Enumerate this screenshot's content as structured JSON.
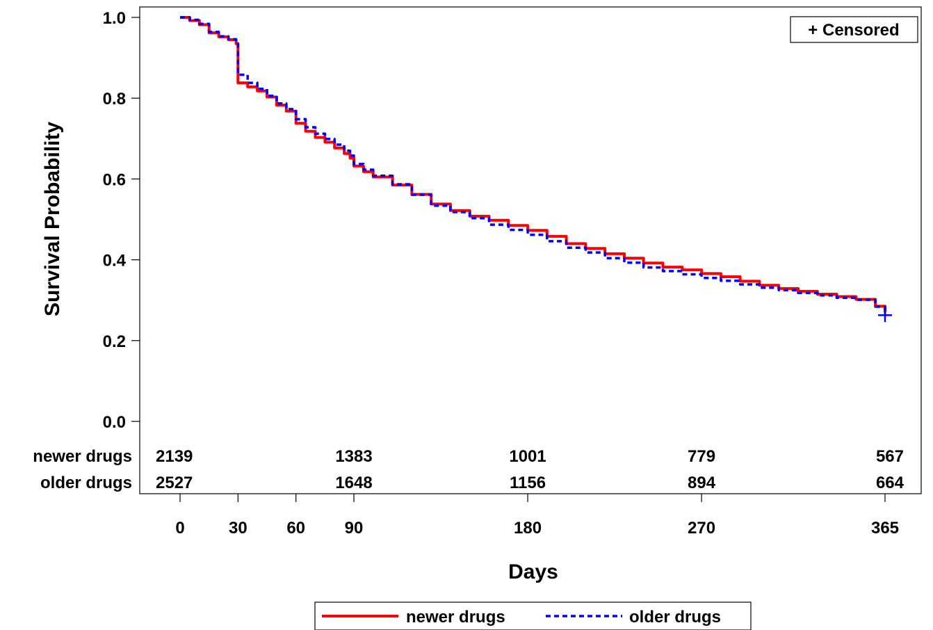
{
  "chart_data": {
    "type": "line",
    "title": "",
    "xlabel": "Days",
    "ylabel": "Survival Probability",
    "xlim": [
      0,
      365
    ],
    "ylim": [
      0,
      1
    ],
    "x_ticks": [
      0,
      30,
      60,
      90,
      180,
      270,
      365
    ],
    "y_ticks": [
      "0.0",
      "0.2",
      "0.4",
      "0.6",
      "0.8",
      "1.0"
    ],
    "grid": false,
    "censored_label": "+ Censored",
    "legend_position": "bottom",
    "series": [
      {
        "name": "newer drugs",
        "color": "#ff0000",
        "line_style": "solid",
        "x": [
          0,
          5,
          10,
          15,
          20,
          25,
          29,
          30,
          35,
          40,
          45,
          50,
          55,
          60,
          65,
          70,
          75,
          80,
          85,
          88,
          90,
          95,
          100,
          110,
          120,
          130,
          140,
          150,
          160,
          170,
          180,
          190,
          200,
          210,
          220,
          230,
          240,
          250,
          260,
          270,
          280,
          290,
          300,
          310,
          320,
          330,
          340,
          350,
          360,
          365
        ],
        "y": [
          1.0,
          0.992,
          0.982,
          0.962,
          0.952,
          0.945,
          0.935,
          0.838,
          0.828,
          0.818,
          0.803,
          0.783,
          0.768,
          0.738,
          0.718,
          0.703,
          0.691,
          0.677,
          0.663,
          0.652,
          0.632,
          0.618,
          0.605,
          0.585,
          0.562,
          0.538,
          0.522,
          0.508,
          0.498,
          0.485,
          0.473,
          0.458,
          0.44,
          0.428,
          0.415,
          0.404,
          0.392,
          0.382,
          0.375,
          0.366,
          0.358,
          0.347,
          0.337,
          0.329,
          0.322,
          0.315,
          0.309,
          0.302,
          0.285,
          0.269
        ]
      },
      {
        "name": "older drugs",
        "color": "#0000ff",
        "line_style": "dashed",
        "x": [
          0,
          5,
          10,
          15,
          20,
          25,
          29,
          30,
          35,
          40,
          45,
          50,
          55,
          60,
          65,
          70,
          75,
          80,
          85,
          88,
          90,
          95,
          100,
          110,
          120,
          130,
          140,
          150,
          160,
          170,
          180,
          190,
          200,
          210,
          220,
          230,
          240,
          250,
          260,
          270,
          280,
          290,
          300,
          310,
          320,
          330,
          340,
          350,
          360,
          365
        ],
        "y": [
          1.0,
          0.994,
          0.984,
          0.964,
          0.953,
          0.946,
          0.935,
          0.858,
          0.838,
          0.823,
          0.806,
          0.787,
          0.773,
          0.748,
          0.728,
          0.712,
          0.699,
          0.685,
          0.67,
          0.658,
          0.637,
          0.623,
          0.608,
          0.587,
          0.561,
          0.534,
          0.518,
          0.503,
          0.487,
          0.474,
          0.462,
          0.446,
          0.43,
          0.418,
          0.404,
          0.393,
          0.381,
          0.372,
          0.364,
          0.355,
          0.348,
          0.339,
          0.331,
          0.325,
          0.318,
          0.312,
          0.306,
          0.301,
          0.284,
          0.265
        ]
      }
    ],
    "censored_points": [
      {
        "series": "older drugs",
        "x": 365,
        "y": 0.263
      }
    ],
    "at_risk_table": {
      "rows": [
        {
          "label": "newer drugs",
          "values": [
            {
              "x": 0,
              "value": "2139"
            },
            {
              "x": 90,
              "value": "1383"
            },
            {
              "x": 180,
              "value": "1001"
            },
            {
              "x": 270,
              "value": "779"
            },
            {
              "x": 365,
              "value": "567"
            }
          ]
        },
        {
          "label": "older drugs",
          "values": [
            {
              "x": 0,
              "value": "2527"
            },
            {
              "x": 90,
              "value": "1648"
            },
            {
              "x": 180,
              "value": "1156"
            },
            {
              "x": 270,
              "value": "894"
            },
            {
              "x": 365,
              "value": "664"
            }
          ]
        }
      ]
    }
  }
}
